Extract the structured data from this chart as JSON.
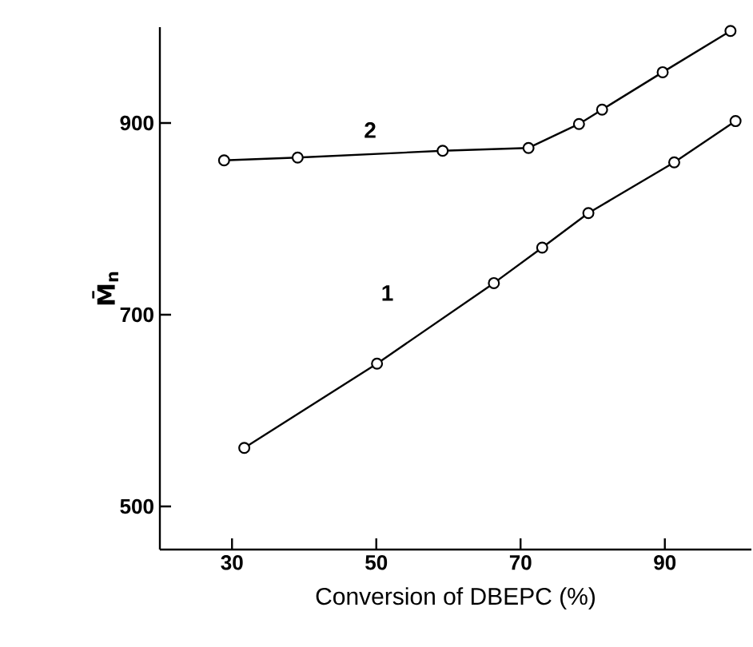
{
  "chart_data": {
    "type": "line",
    "xlabel": "Conversion of DBEPC (%)",
    "ylabel": "M̄$_{n}$",
    "xlim": [
      20,
      102
    ],
    "ylim": [
      455,
      1000
    ],
    "xticks": [
      30,
      50,
      70,
      90
    ],
    "yticks": [
      500,
      700,
      900
    ],
    "marker": "circle",
    "line_style": "solid",
    "series": [
      {
        "name": "1",
        "color": "#000000",
        "x": [
          31.7,
          50.1,
          66.3,
          73.0,
          79.4,
          91.3,
          99.8
        ],
        "values": [
          561,
          649,
          733,
          770,
          806,
          859,
          902
        ]
      },
      {
        "name": "2",
        "color": "#000000",
        "x": [
          28.9,
          39.1,
          59.2,
          71.1,
          78.1,
          81.3,
          89.7,
          99.1
        ],
        "values": [
          861,
          864,
          871,
          874,
          899,
          914,
          953,
          996
        ]
      }
    ]
  }
}
